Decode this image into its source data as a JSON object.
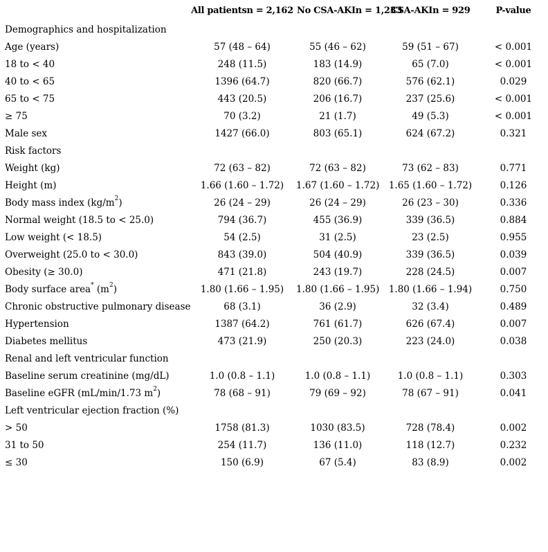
{
  "table": {
    "headers": [
      "",
      "All patientsn = 2,162",
      "No CSA-AKIn = 1,233",
      "CSA-AKIn = 929",
      "P-value"
    ],
    "rows": [
      {
        "type": "section",
        "label": "Demographics and hospitalization"
      },
      {
        "type": "data",
        "label": "Age (years)",
        "cells": [
          "57 (48 – 64)",
          "55 (46 – 62)",
          "59 (51 – 67)",
          "< 0.001"
        ]
      },
      {
        "type": "data",
        "label": "18 to < 40",
        "cells": [
          "248 (11.5)",
          "183 (14.9)",
          "65 (7.0)",
          "< 0.001"
        ]
      },
      {
        "type": "data",
        "label": "40 to < 65",
        "cells": [
          "1396 (64.7)",
          "820 (66.7)",
          "576 (62.1)",
          "0.029"
        ]
      },
      {
        "type": "data",
        "label": "65 to < 75",
        "cells": [
          "443 (20.5)",
          "206 (16.7)",
          "237 (25.6)",
          "< 0.001"
        ]
      },
      {
        "type": "data",
        "label": "≥ 75",
        "cells": [
          "70 (3.2)",
          "21 (1.7)",
          "49 (5.3)",
          "< 0.001"
        ]
      },
      {
        "type": "data",
        "label": "Male sex",
        "cells": [
          "1427 (66.0)",
          "803 (65.1)",
          "624 (67.2)",
          "0.321"
        ]
      },
      {
        "type": "section",
        "label": "Risk factors"
      },
      {
        "type": "data",
        "label": "Weight (kg)",
        "cells": [
          "72 (63 – 82)",
          "72 (63 – 82)",
          "73 (62 – 83)",
          "0.771"
        ]
      },
      {
        "type": "data",
        "label": "Height (m)",
        "cells": [
          "1.66 (1.60 – 1.72)",
          "1.67 (1.60 – 1.72)",
          "1.65 (1.60 – 1.72)",
          "0.126"
        ]
      },
      {
        "type": "data",
        "label": "Body mass index (kg/m",
        "sup": "2",
        "suffix": ")",
        "cells": [
          "26 (24 – 29)",
          "26 (24 – 29)",
          "26 (23 – 30)",
          "0.336"
        ]
      },
      {
        "type": "data",
        "label": "Normal weight (18.5 to < 25.0)",
        "cells": [
          "794 (36.7)",
          "455 (36.9)",
          "339 (36.5)",
          "0.884"
        ]
      },
      {
        "type": "data",
        "label": "Low weight (< 18.5)",
        "cells": [
          "54 (2.5)",
          "31 (2.5)",
          "23 (2.5)",
          "0.955"
        ]
      },
      {
        "type": "data",
        "label": "Overweight (25.0 to < 30.0)",
        "cells": [
          "843 (39.0)",
          "504 (40.9)",
          "339 (36.5)",
          "0.039"
        ]
      },
      {
        "type": "data",
        "label": "Obesity (≥ 30.0)",
        "cells": [
          "471 (21.8)",
          "243 (19.7)",
          "228 (24.5)",
          "0.007"
        ]
      },
      {
        "type": "data",
        "label": "Body surface area",
        "sup": "*",
        "suffix": " (m",
        "sup2": "2",
        "suffix2": ")",
        "cells": [
          "1.80 (1.66 – 1.95)",
          "1.80 (1.66 – 1.95)",
          "1.80 (1.66 – 1.94)",
          "0.750"
        ]
      },
      {
        "type": "data",
        "label": "Chronic obstructive pulmonary disease",
        "cells": [
          "68 (3.1)",
          "36 (2.9)",
          "32 (3.4)",
          "0.489"
        ]
      },
      {
        "type": "data",
        "label": "Hypertension",
        "cells": [
          "1387 (64.2)",
          "761 (61.7)",
          "626 (67.4)",
          "0.007"
        ]
      },
      {
        "type": "data",
        "label": "Diabetes mellitus",
        "cells": [
          "473 (21.9)",
          "250 (20.3)",
          "223 (24.0)",
          "0.038"
        ]
      },
      {
        "type": "section",
        "label": "Renal and left ventricular function"
      },
      {
        "type": "data",
        "label": "Baseline serum creatinine (mg/dL)",
        "cells": [
          "1.0 (0.8 – 1.1)",
          "1.0 (0.8 – 1.1)",
          "1.0 (0.8 – 1.1)",
          "0.303"
        ]
      },
      {
        "type": "data",
        "label": "Baseline eGFR (mL/min/1.73 m",
        "sup": "2",
        "suffix": ")",
        "cells": [
          "78 (68 – 91)",
          "79 (69 – 92)",
          "78 (67 – 91)",
          "0.041"
        ]
      },
      {
        "type": "section",
        "label": "Left ventricular ejection fraction (%)"
      },
      {
        "type": "data",
        "label": "> 50",
        "cells": [
          "1758 (81.3)",
          "1030 (83.5)",
          "728 (78.4)",
          "0.002"
        ]
      },
      {
        "type": "data",
        "label": "31 to 50",
        "cells": [
          "254 (11.7)",
          "136 (11.0)",
          "118 (12.7)",
          "0.232"
        ]
      },
      {
        "type": "data",
        "label": "≤ 30",
        "cells": [
          "150 (6.9)",
          "67 (5.4)",
          "83 (8.9)",
          "0.002"
        ]
      }
    ]
  }
}
